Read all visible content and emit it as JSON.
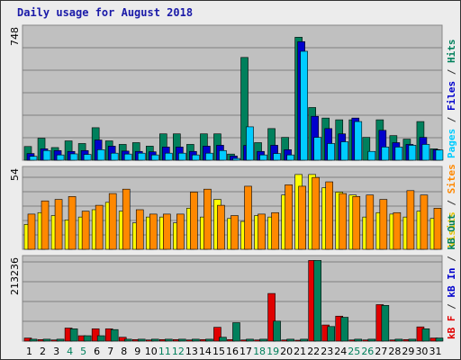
{
  "chart_data": {
    "type": "bar",
    "title": "Daily usage for August 2018",
    "categories": [
      "1",
      "2",
      "3",
      "4",
      "5",
      "6",
      "7",
      "8",
      "9",
      "10",
      "11",
      "12",
      "13",
      "14",
      "15",
      "16",
      "17",
      "18",
      "19",
      "20",
      "21",
      "22",
      "23",
      "24",
      "25",
      "26",
      "27",
      "28",
      "29",
      "30",
      "31"
    ],
    "weekend_days": [
      "4",
      "5",
      "11",
      "12",
      "18",
      "19",
      "25",
      "26"
    ],
    "panels": [
      {
        "id": "hits",
        "ymax": 748,
        "ymax_label": "748",
        "axis_label_parts": [
          {
            "text": "Pages",
            "color": "#00ccff"
          },
          {
            "text": " / ",
            "color": "#333333"
          },
          {
            "text": "Files",
            "color": "#0000cc"
          },
          {
            "text": " / ",
            "color": "#333333"
          },
          {
            "text": "Hits",
            "color": "#00805c"
          }
        ],
        "series": [
          {
            "name": "Hits",
            "color": "#00805c",
            "values": [
              78,
              125,
              72,
              110,
              95,
              185,
              110,
              90,
              100,
              80,
              150,
              150,
              90,
              150,
              150,
              35,
              585,
              100,
              180,
              130,
              700,
              300,
              240,
              230,
              230,
              130,
              230,
              140,
              120,
              220,
              65
            ]
          },
          {
            "name": "Files",
            "color": "#0000cc",
            "values": [
              38,
              65,
              55,
              50,
              55,
              115,
              80,
              52,
              50,
              48,
              75,
              75,
              50,
              80,
              85,
              24,
              84,
              50,
              85,
              60,
              675,
              250,
              180,
              150,
              240,
              0,
              170,
              100,
              90,
              130,
              60
            ]
          },
          {
            "name": "Pages",
            "color": "#00ccff",
            "values": [
              22,
              55,
              30,
              36,
              33,
              60,
              40,
              35,
              40,
              30,
              40,
              40,
              30,
              40,
              55,
              10,
              190,
              30,
              38,
              30,
              620,
              130,
              95,
              105,
              220,
              50,
              75,
              75,
              85,
              90,
              58
            ]
          }
        ]
      },
      {
        "id": "visits",
        "ymax": 54,
        "ymax_label": "54",
        "axis_label_parts": [
          {
            "text": "Visits",
            "color": "#e6c200"
          },
          {
            "text": " / ",
            "color": "#333333"
          },
          {
            "text": "Sites",
            "color": "#ff8800"
          }
        ],
        "series": [
          {
            "name": "Visits",
            "color": "#ffff00",
            "values": [
              17,
              25,
              23,
              20,
              22,
              27,
              32,
              26,
              18,
              22,
              22,
              18,
              28,
              22,
              34,
              21,
              19,
              23,
              22,
              37,
              51,
              51,
              42,
              39,
              37,
              22,
              25,
              24,
              22,
              26,
              21
            ]
          },
          {
            "name": "Sites",
            "color": "#ff8800",
            "values": [
              24,
              33,
              34,
              36,
              26,
              30,
              38,
              41,
              27,
              24,
              24,
              24,
              39,
              41,
              30,
              23,
              43,
              24,
              25,
              44,
              43,
              49,
              46,
              38,
              36,
              37,
              34,
              25,
              40,
              37,
              28
            ]
          }
        ]
      },
      {
        "id": "kbytes",
        "ymax": 213236,
        "ymax_label": "213236",
        "axis_label_parts": [
          {
            "text": "kB F",
            "color": "#e00000"
          },
          {
            "text": " / ",
            "color": "#333333"
          },
          {
            "text": "kB In",
            "color": "#0000cc"
          },
          {
            "text": " / ",
            "color": "#333333"
          },
          {
            "text": "kB Out",
            "color": "#00805c"
          }
        ],
        "series": [
          {
            "name": "kB F",
            "color": "#e00000",
            "values": [
              8000,
              4000,
              3000,
              34000,
              14000,
              32000,
              32000,
              10000,
              4000,
              3000,
              4000,
              4000,
              3000,
              4000,
              36000,
              4000,
              3000,
              3000,
              124000,
              3000,
              2000,
              210000,
              42000,
              65000,
              3000,
              3000,
              95000,
              3000,
              4000,
              37000,
              8000
            ]
          },
          {
            "name": "kB In",
            "color": "#0000cc",
            "values": [
              0,
              0,
              0,
              0,
              0,
              0,
              0,
              0,
              0,
              0,
              0,
              0,
              0,
              0,
              0,
              0,
              0,
              0,
              0,
              0,
              0,
              0,
              0,
              0,
              0,
              0,
              0,
              0,
              0,
              0,
              0
            ]
          },
          {
            "name": "kB Out",
            "color": "#00805c",
            "values": [
              5000,
              5000,
              5000,
              32000,
              14000,
              14000,
              30000,
              5000,
              5000,
              5000,
              5000,
              5000,
              5000,
              5000,
              10000,
              48000,
              5000,
              5000,
              52000,
              5000,
              5000,
              210000,
              38000,
              62000,
              5000,
              5000,
              93000,
              5000,
              5000,
              32000,
              8000
            ]
          }
        ]
      }
    ]
  }
}
